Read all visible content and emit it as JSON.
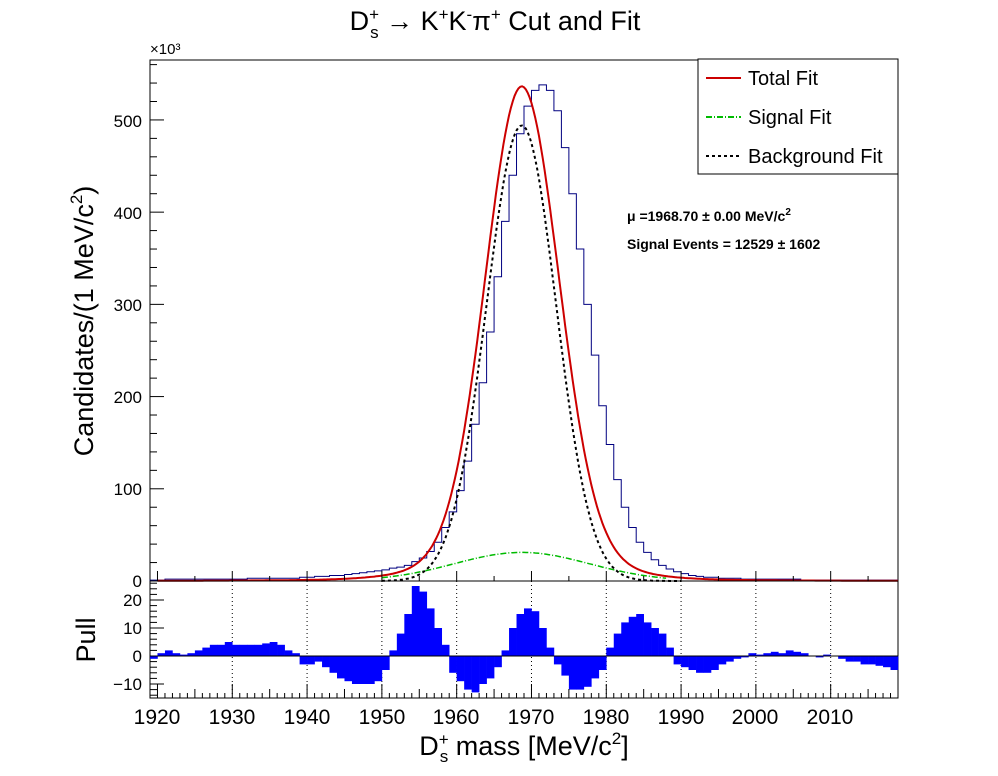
{
  "chart_data": [
    {
      "type": "histogram_fit",
      "title": {
        "main": "D",
        "sup": "+",
        "sub": "s",
        "rest_pre": " → K",
        "k1_sup": "+",
        "k2": "K",
        "k2_sup": "-",
        "pi": "π",
        "pi_sup": "+",
        "tail": " Cut and Fit"
      },
      "ylabel": {
        "main": "Candidates/(1 MeV/c",
        "sup": "2",
        "end": ")"
      },
      "y_exponent": "×10³",
      "ylim": [
        0,
        565
      ],
      "xlim": [
        1919,
        2019
      ],
      "y_ticks": [
        "0",
        "100",
        "200",
        "300",
        "400",
        "500"
      ],
      "legend": {
        "position": "top-right",
        "entries": [
          {
            "label": "Total Fit",
            "color": "#cc0000",
            "style": "solid"
          },
          {
            "label": "Signal Fit",
            "color": "#00bb00",
            "style": "dash-dot"
          },
          {
            "label": "Background Fit",
            "color": "#000000",
            "style": "dotted"
          }
        ]
      },
      "annotations": [
        {
          "text": "μ =1968.70 ± 0.00 MeV/c",
          "sup": "2"
        },
        {
          "text": "Signal Events = 12529 ± 1602"
        }
      ],
      "histogram_color": "#000080",
      "bin_width": 1,
      "x_bins_start": 1919,
      "values": [
        1,
        1,
        2,
        2,
        2,
        2,
        2,
        2,
        2,
        2,
        2,
        2,
        2,
        3,
        3,
        3,
        3,
        3,
        3,
        3,
        4,
        4,
        5,
        5,
        6,
        6,
        7,
        8,
        9,
        10,
        11,
        12,
        14,
        15,
        17,
        21,
        25,
        32,
        42,
        58,
        75,
        98,
        130,
        170,
        215,
        270,
        330,
        390,
        440,
        485,
        515,
        532,
        538,
        532,
        510,
        470,
        420,
        360,
        300,
        245,
        190,
        148,
        110,
        80,
        58,
        42,
        31,
        23,
        17,
        13,
        10,
        8,
        6,
        5,
        4,
        4,
        3,
        3,
        3,
        2,
        2,
        2,
        2,
        2,
        2,
        2,
        2,
        1,
        1,
        1,
        1,
        1,
        1,
        1,
        1,
        1,
        1,
        1,
        1,
        1
      ],
      "total_fit": {
        "mean": 1968.7,
        "peak": 498,
        "sigma_l": 4.8,
        "sigma_r": 4.9,
        "tail_amp": 2.5,
        "tail_lambda": 0.07
      },
      "signal_fit": {
        "mean": 1968.7,
        "peak": 31,
        "sigma": 9
      },
      "background_fit": {
        "mean": 1968.7,
        "peak": 494,
        "sigma_l": 4.7,
        "sigma_r": 4.6
      }
    },
    {
      "type": "bar",
      "ylabel": "Pull",
      "ylim": [
        -14.5,
        27
      ],
      "y_ticks": [
        "20",
        "10",
        "0",
        "−10"
      ],
      "x_ticks": [
        "1920",
        "1930",
        "1940",
        "1950",
        "1960",
        "1970",
        "1980",
        "1990",
        "2000",
        "2010"
      ],
      "xlabel": {
        "main": "D",
        "sup": "+",
        "sub": "s",
        "rest": " mass [MeV/c",
        "sup2": "2",
        "end": "]"
      },
      "color": "#0000ff",
      "x_bins_start": 1919,
      "values": [
        -1,
        1,
        2,
        1,
        0.5,
        1,
        2,
        3,
        4,
        4,
        5,
        4,
        4,
        4,
        4,
        4.5,
        5,
        4,
        2,
        1,
        -3,
        -3,
        -2,
        -4,
        -6,
        -8,
        -9,
        -10,
        -10,
        -10,
        -9,
        -5,
        2,
        8,
        15,
        25,
        23,
        17,
        10,
        4,
        -6,
        -9,
        -12,
        -13,
        -10,
        -8,
        -4,
        2,
        10,
        15,
        17,
        16,
        10,
        3,
        -3,
        -7,
        -12,
        -12,
        -11,
        -8,
        -5,
        3,
        8,
        12,
        14,
        15,
        12,
        10,
        8,
        3,
        -3,
        -4,
        -5,
        -6,
        -6,
        -5,
        -3,
        -2,
        -1,
        -0.5,
        1,
        0.5,
        1,
        1.5,
        1,
        2,
        1.5,
        1,
        0,
        -0.5,
        0.5,
        0,
        -1,
        -2,
        -2,
        -3,
        -3,
        -3.5,
        -4,
        -5
      ]
    }
  ]
}
